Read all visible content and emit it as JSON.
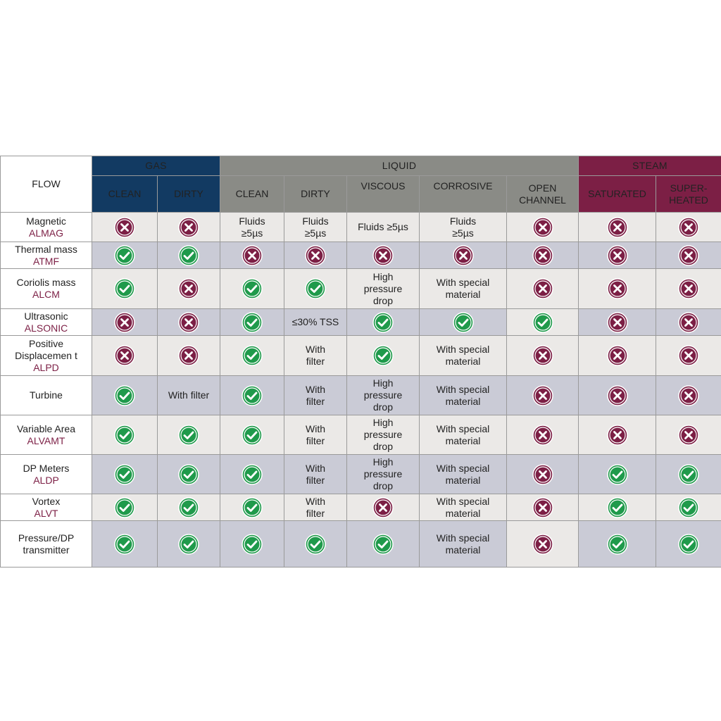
{
  "header": {
    "corner": "FLOW",
    "groups": {
      "gas": "GAS",
      "liquid": "LIQUID",
      "steam": "STEAM"
    },
    "columns": {
      "gas_clean": "CLEAN",
      "gas_dirty": "DIRTY",
      "liq_clean": "CLEAN",
      "liq_dirty": "DIRTY",
      "liq_viscous": "VISCOUS",
      "liq_corrosive": "CORROSIVE",
      "liq_open_1": "OPEN",
      "liq_open_2": "CHANNEL",
      "stm_saturated": "SATURATED",
      "stm_super_1": "SUPER-",
      "stm_super_2": "HEATED"
    }
  },
  "icons": {
    "yes": "check-circle-icon",
    "no": "cross-circle-icon"
  },
  "colors": {
    "gas": "#123a62",
    "liquid": "#8a8b86",
    "steam": "#7c1f45",
    "yes": "#1f9a4b",
    "no": "#7c1f45"
  },
  "rows": [
    {
      "name": [
        "Magnetic"
      ],
      "code": "ALMAG",
      "cells": [
        {
          "icon": "no"
        },
        {
          "icon": "no"
        },
        {
          "text": [
            "Fluids",
            "≥5µs"
          ]
        },
        {
          "text": [
            "Fluids",
            "≥5µs"
          ]
        },
        {
          "text": [
            "Fluids ≥5µs"
          ]
        },
        {
          "text": [
            "Fluids",
            "≥5µs"
          ]
        },
        {
          "icon": "no"
        },
        {
          "icon": "no"
        },
        {
          "icon": "no"
        }
      ]
    },
    {
      "name": [
        "Thermal mass"
      ],
      "code": "ATMF",
      "cells": [
        {
          "icon": "yes"
        },
        {
          "icon": "yes"
        },
        {
          "icon": "no"
        },
        {
          "icon": "no"
        },
        {
          "icon": "no"
        },
        {
          "icon": "no"
        },
        {
          "icon": "no"
        },
        {
          "icon": "no"
        },
        {
          "icon": "no"
        }
      ]
    },
    {
      "name": [
        "Coriolis mass"
      ],
      "code": "ALCM",
      "cells": [
        {
          "icon": "yes"
        },
        {
          "icon": "no"
        },
        {
          "icon": "yes"
        },
        {
          "icon": "yes"
        },
        {
          "text": [
            "High",
            "pressure",
            "drop"
          ]
        },
        {
          "text": [
            "With special",
            "material"
          ]
        },
        {
          "icon": "no"
        },
        {
          "icon": "no"
        },
        {
          "icon": "no"
        }
      ]
    },
    {
      "name": [
        "Ultrasonic"
      ],
      "code": "ALSONIC",
      "cells": [
        {
          "icon": "no"
        },
        {
          "icon": "no"
        },
        {
          "icon": "yes"
        },
        {
          "text": [
            "≤30% TSS"
          ]
        },
        {
          "icon": "yes"
        },
        {
          "icon": "yes"
        },
        {
          "icon": "yes"
        },
        {
          "icon": "no"
        },
        {
          "icon": "no"
        }
      ]
    },
    {
      "name": [
        "Positive",
        "Displacemen t"
      ],
      "code": "ALPD",
      "cells": [
        {
          "icon": "no"
        },
        {
          "icon": "no"
        },
        {
          "icon": "yes"
        },
        {
          "text": [
            "With",
            "filter"
          ]
        },
        {
          "icon": "yes"
        },
        {
          "text": [
            "With special",
            "material"
          ]
        },
        {
          "icon": "no"
        },
        {
          "icon": "no"
        },
        {
          "icon": "no"
        }
      ]
    },
    {
      "name": [
        "Turbine"
      ],
      "code": "",
      "cells": [
        {
          "icon": "yes"
        },
        {
          "text": [
            "With filter"
          ]
        },
        {
          "icon": "yes"
        },
        {
          "text": [
            "With",
            "filter"
          ]
        },
        {
          "text": [
            "High",
            "pressure",
            "drop"
          ]
        },
        {
          "text": [
            "With special",
            "material"
          ]
        },
        {
          "icon": "no"
        },
        {
          "icon": "no"
        },
        {
          "icon": "no"
        }
      ]
    },
    {
      "name": [
        "Variable Area"
      ],
      "code": "ALVAMT",
      "cells": [
        {
          "icon": "yes"
        },
        {
          "icon": "yes"
        },
        {
          "icon": "yes"
        },
        {
          "text": [
            "With",
            "filter"
          ]
        },
        {
          "text": [
            "High",
            "pressure",
            "drop"
          ]
        },
        {
          "text": [
            "With special",
            "material"
          ]
        },
        {
          "icon": "no"
        },
        {
          "icon": "no"
        },
        {
          "icon": "no"
        }
      ]
    },
    {
      "name": [
        "DP Meters"
      ],
      "code": "ALDP",
      "cells": [
        {
          "icon": "yes"
        },
        {
          "icon": "yes"
        },
        {
          "icon": "yes"
        },
        {
          "text": [
            "With",
            "filter"
          ]
        },
        {
          "text": [
            "High",
            "pressure",
            "drop"
          ]
        },
        {
          "text": [
            "With special",
            "material"
          ]
        },
        {
          "icon": "no"
        },
        {
          "icon": "yes"
        },
        {
          "icon": "yes"
        }
      ]
    },
    {
      "name": [
        "Vortex"
      ],
      "code": "ALVT",
      "cells": [
        {
          "icon": "yes"
        },
        {
          "icon": "yes"
        },
        {
          "icon": "yes"
        },
        {
          "text": [
            "With",
            "filter"
          ]
        },
        {
          "icon": "no"
        },
        {
          "text": [
            "With special",
            "material"
          ]
        },
        {
          "icon": "no"
        },
        {
          "icon": "yes"
        },
        {
          "icon": "yes"
        }
      ]
    },
    {
      "name": [
        "Pressure/DP",
        "transmitter"
      ],
      "code": "",
      "cells": [
        {
          "icon": "yes"
        },
        {
          "icon": "yes"
        },
        {
          "icon": "yes"
        },
        {
          "icon": "yes"
        },
        {
          "icon": "yes"
        },
        {
          "text": [
            "With special",
            "material"
          ]
        },
        {
          "icon": "no"
        },
        {
          "icon": "yes"
        },
        {
          "icon": "yes"
        }
      ]
    }
  ]
}
